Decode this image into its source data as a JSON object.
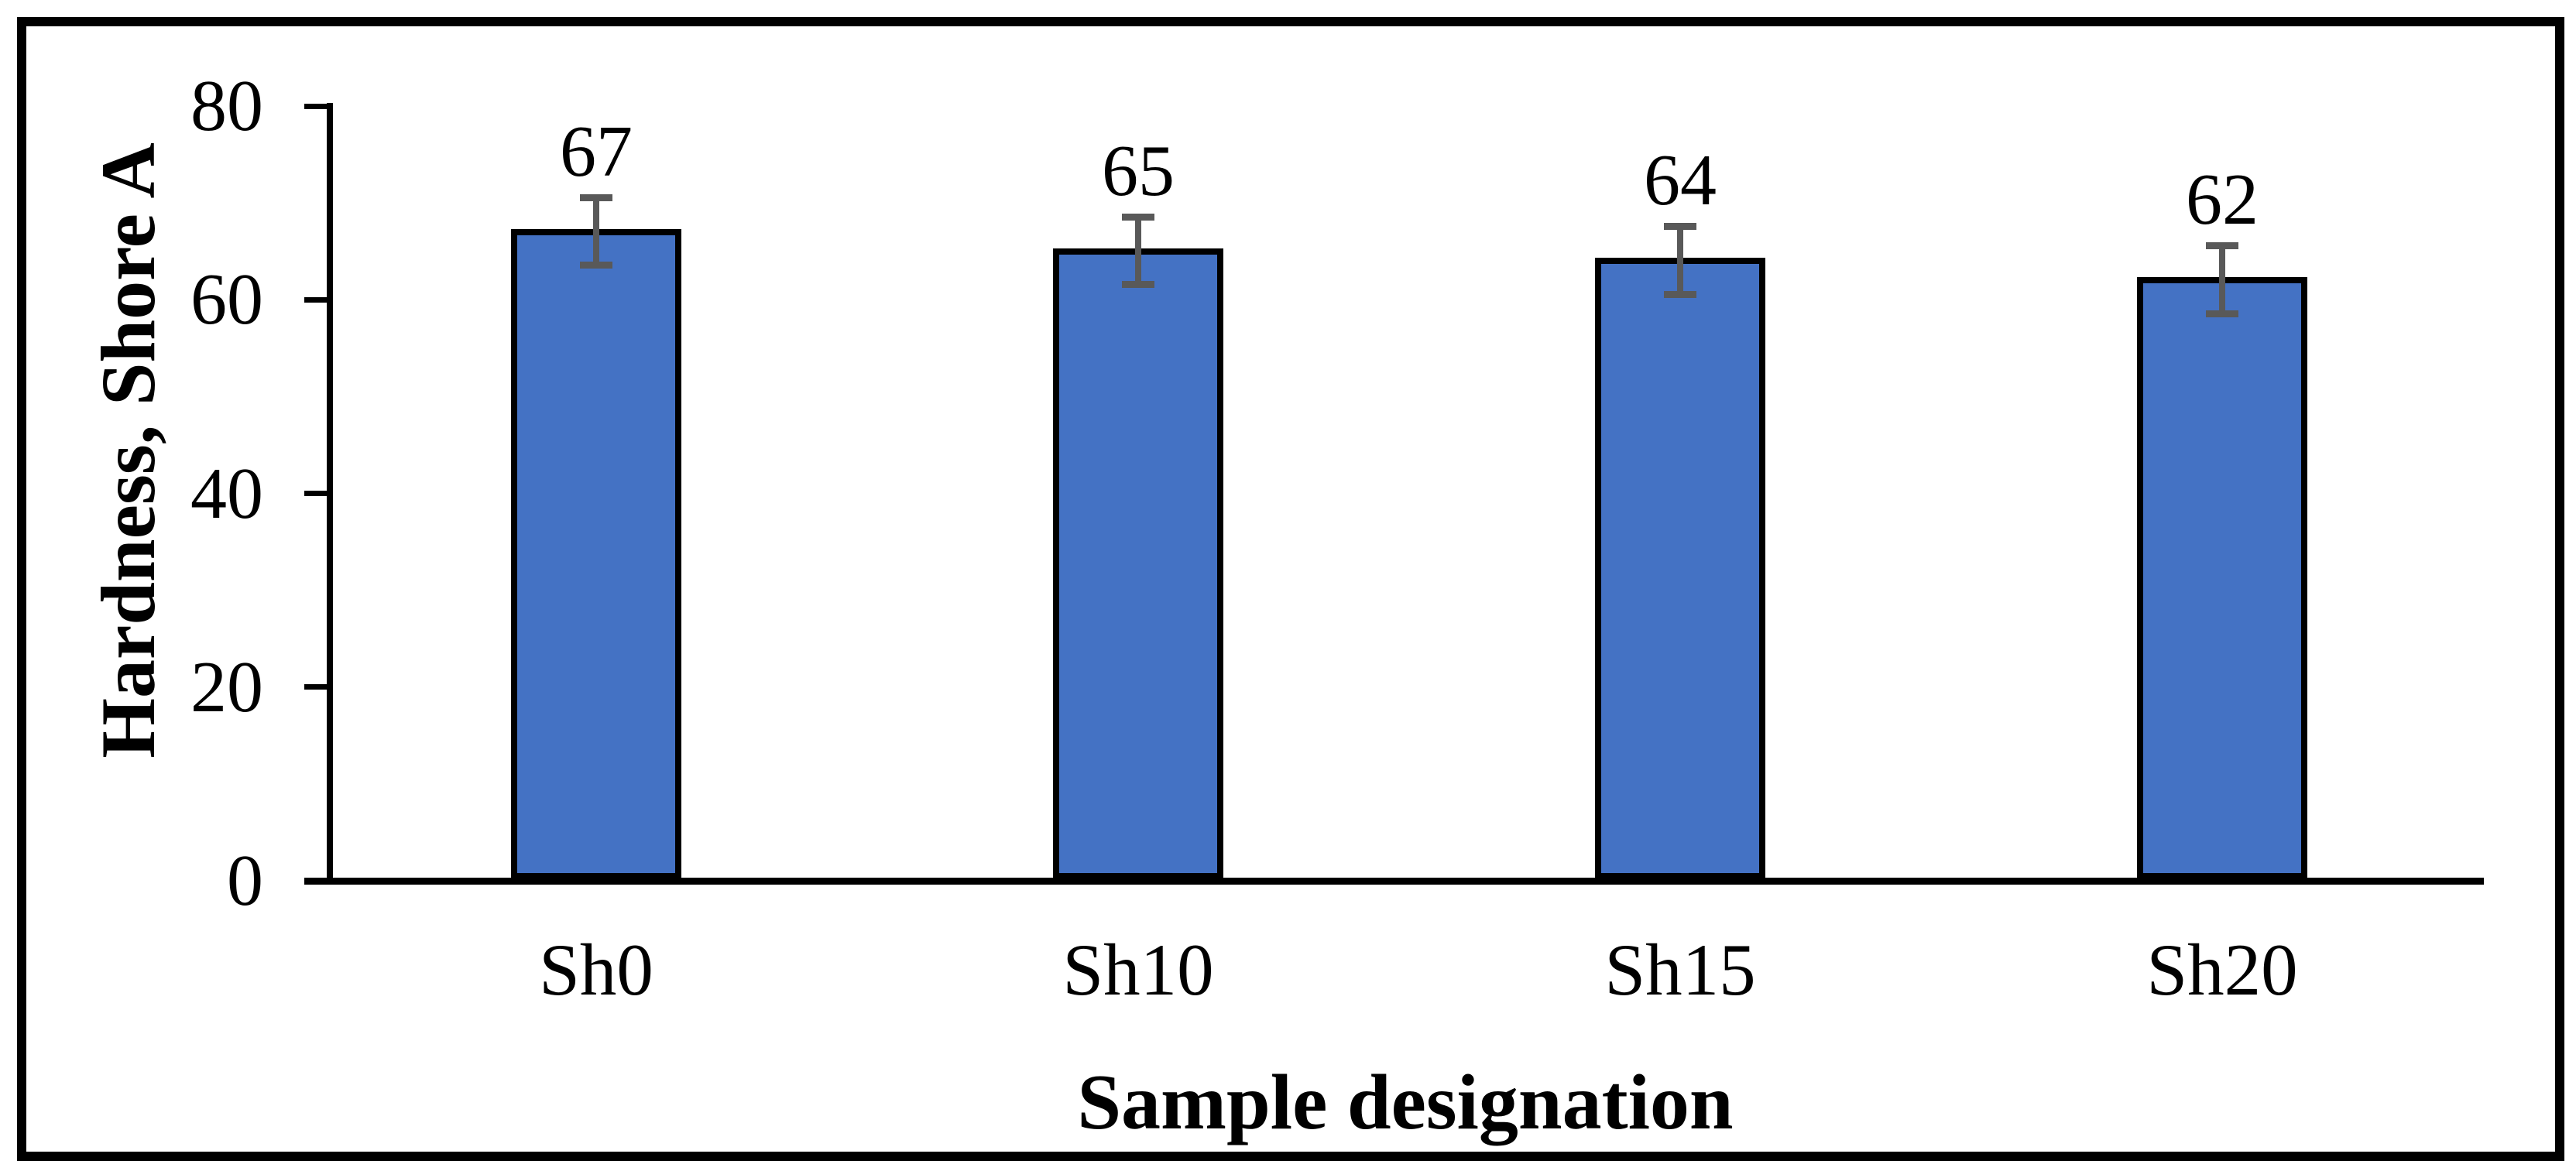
{
  "chart_data": {
    "type": "bar",
    "title": "",
    "xlabel": "Sample designation",
    "ylabel": "Hardness, Shore A",
    "categories": [
      "Sh0",
      "Sh10",
      "Sh15",
      "Sh20"
    ],
    "values": [
      67,
      65,
      64,
      62
    ],
    "data_labels": [
      "67",
      "65",
      "64",
      "62"
    ],
    "error_bar_plus_minus": 3.5,
    "ylim": [
      0,
      80
    ],
    "yticks": [
      0,
      20,
      40,
      60,
      80
    ],
    "ytick_labels": [
      "0",
      "20",
      "40",
      "60",
      "80"
    ],
    "grid": "off",
    "legend": "none",
    "colors": {
      "bar_fill": "#4472C4",
      "bar_border": "#000000",
      "error_bar": "#595959",
      "axis": "#000000",
      "frame_border": "#000000",
      "text": "#000000",
      "background": "#FFFFFF"
    }
  }
}
